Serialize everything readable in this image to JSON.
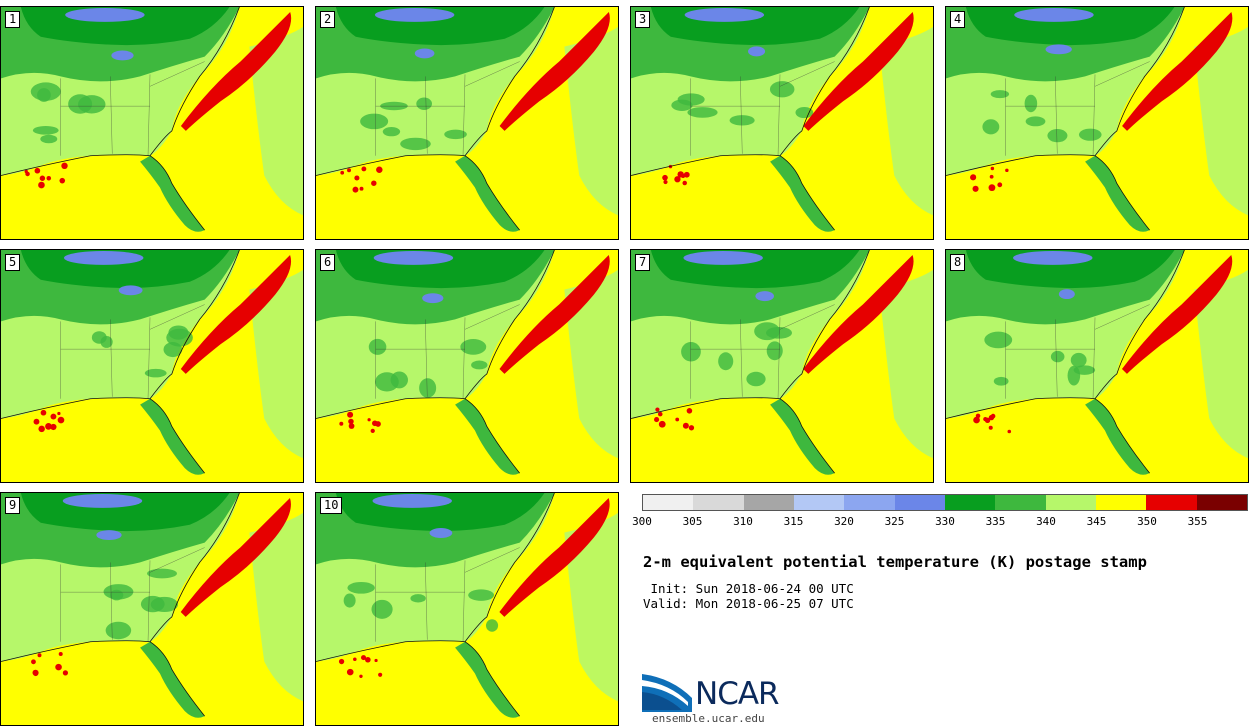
{
  "panels": [
    {
      "label": "1"
    },
    {
      "label": "2"
    },
    {
      "label": "3"
    },
    {
      "label": "4"
    },
    {
      "label": "5"
    },
    {
      "label": "6"
    },
    {
      "label": "7"
    },
    {
      "label": "8"
    },
    {
      "label": "9"
    },
    {
      "label": "10"
    }
  ],
  "colorbar": {
    "ticks": [
      "300",
      "305",
      "310",
      "315",
      "320",
      "325",
      "330",
      "335",
      "340",
      "345",
      "350",
      "355"
    ],
    "colors": [
      "#f0f0f0",
      "#d9d9d9",
      "#a6a6a6",
      "#b3c8f5",
      "#8ca6f0",
      "#6b86e8",
      "#089e1f",
      "#3eb83e",
      "#b6f76a",
      "#ffff00",
      "#e60000",
      "#7a0000"
    ]
  },
  "map_colors": {
    "ocean_yellow": "#ffff00",
    "light_green": "#b6f76a",
    "mid_green": "#3eb83e",
    "dark_green": "#089e1f",
    "blue": "#6b86e8",
    "red": "#e60000"
  },
  "title": "2-m equivalent potential temperature (K) postage stamp",
  "init": " Init: Sun 2018-06-24 00 UTC",
  "valid": "Valid: Mon 2018-06-25 07 UTC",
  "logo": {
    "text": "NCAR",
    "url": "ensemble.ucar.edu"
  }
}
